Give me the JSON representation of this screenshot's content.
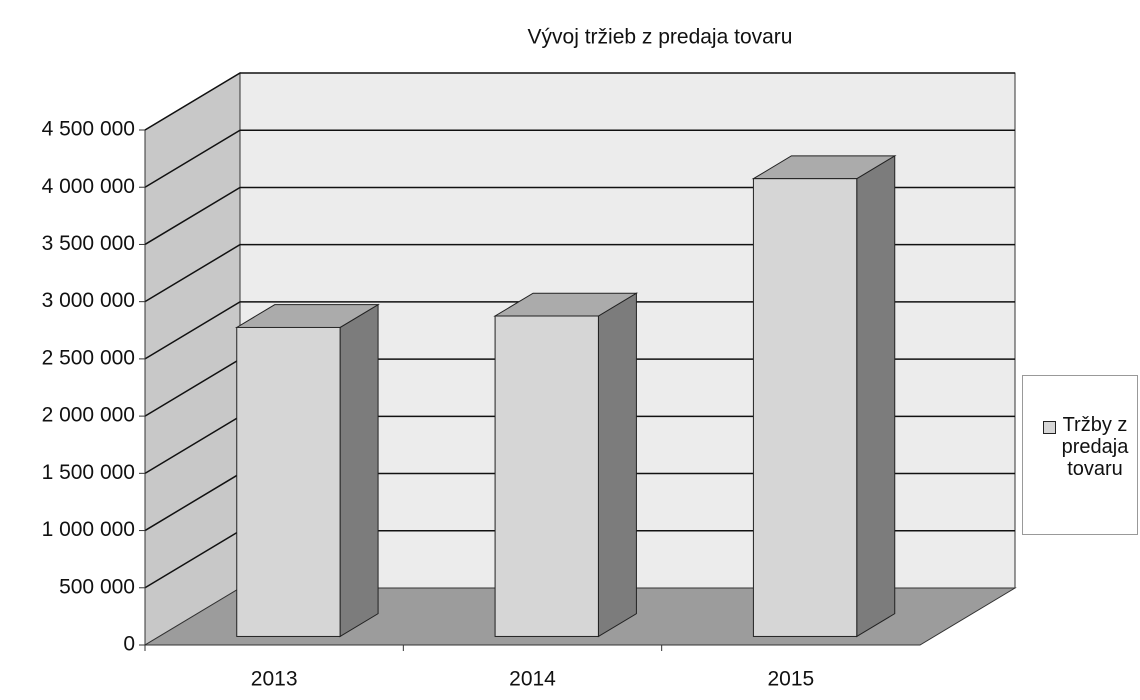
{
  "chart_data": {
    "type": "bar3d",
    "title": "Vývoj tržieb z predaja tovaru",
    "categories": [
      "2013",
      "2014",
      "2015"
    ],
    "series": [
      {
        "name": "Tržby z predaja tovaru",
        "color": "#d6d6d6",
        "values": [
          2700000,
          2800000,
          4000000
        ]
      }
    ],
    "ylim": [
      0,
      4500000
    ],
    "yticks": [
      0,
      {
        "value": 500000,
        "label": "500 000"
      },
      {
        "value": 1000000,
        "label": "1 000 000"
      },
      {
        "value": 1500000,
        "label": "1 500 000"
      },
      {
        "value": 2000000,
        "label": "2 000 000"
      },
      {
        "value": 2500000,
        "label": "2 500 000"
      },
      {
        "value": 3000000,
        "label": "3 000 000"
      },
      {
        "value": 3500000,
        "label": "3 500 000"
      },
      {
        "value": 4000000,
        "label": "4 000 000"
      },
      {
        "value": 4500000,
        "label": "4 500 000"
      }
    ],
    "grid": true,
    "legend": "right"
  }
}
